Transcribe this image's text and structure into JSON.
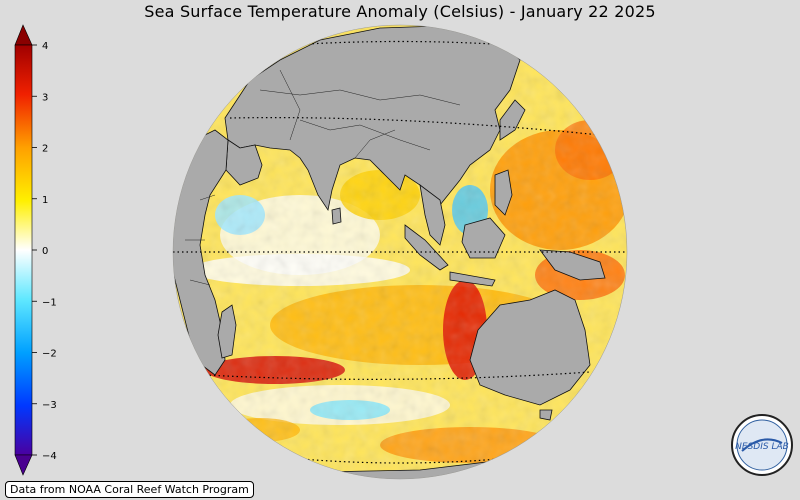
{
  "title": "Sea Surface Temperature Anomaly (Celsius) - January 22 2025",
  "colorbar": {
    "ticks": [
      "4",
      "3",
      "2",
      "1",
      "0",
      "−1",
      "−2",
      "−3",
      "−4"
    ],
    "colors": [
      "#5a00a0",
      "#0030ff",
      "#00a0ff",
      "#40e0ff",
      "#ffffff",
      "#fff000",
      "#ffb000",
      "#ff5000",
      "#e00000",
      "#900000"
    ]
  },
  "map": {
    "ocean_colors": {
      "neutral": "#ffffff",
      "warm1": "#ffe800",
      "warm2": "#ffb400",
      "hot": "#ff5a00",
      "very_hot": "#d40000",
      "cool": "#7fe6ff",
      "cold": "#20a8f0",
      "land": "#aaaaaa"
    }
  },
  "credit": "Data from NOAA Coral Reef Watch Program",
  "logo": {
    "text": "NESDIS LAB"
  }
}
